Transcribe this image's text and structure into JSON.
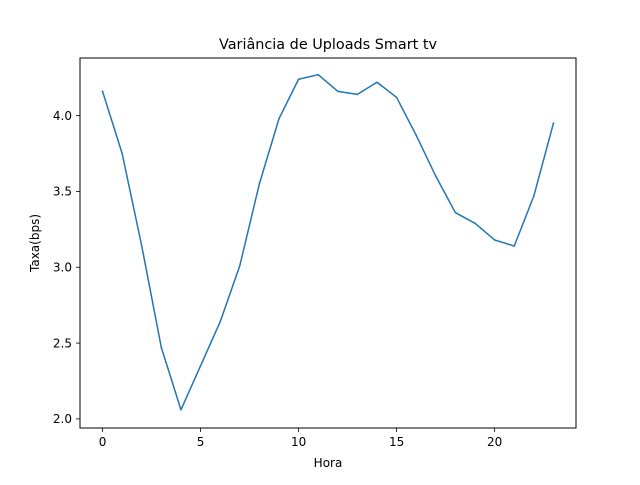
{
  "chart_data": {
    "type": "line",
    "title": "Variância de Uploads Smart tv",
    "xlabel": "Hora",
    "ylabel": "Taxa(bps)",
    "xlim": [
      -1.15,
      24.15
    ],
    "ylim": [
      1.94,
      4.38
    ],
    "grid": false,
    "legend": "none",
    "xticks": [
      0,
      5,
      10,
      15,
      20
    ],
    "xtick_labels": [
      "0",
      "5",
      "10",
      "15",
      "20"
    ],
    "yticks": [
      2.0,
      2.5,
      3.0,
      3.5,
      4.0
    ],
    "ytick_labels": [
      "2.0",
      "2.5",
      "3.0",
      "3.5",
      "4.0"
    ],
    "series": [
      {
        "color": "#1f77b4",
        "x": [
          0,
          1,
          2,
          3,
          4,
          5,
          6,
          7,
          8,
          9,
          10,
          11,
          12,
          13,
          14,
          15,
          16,
          17,
          18,
          19,
          20,
          21,
          22,
          23
        ],
        "y": [
          4.16,
          3.75,
          3.14,
          2.47,
          2.06,
          2.35,
          2.64,
          3.01,
          3.55,
          3.98,
          4.24,
          4.27,
          4.16,
          4.14,
          4.22,
          4.12,
          3.87,
          3.6,
          3.36,
          3.29,
          3.18,
          3.14,
          3.47,
          3.95
        ]
      }
    ]
  }
}
